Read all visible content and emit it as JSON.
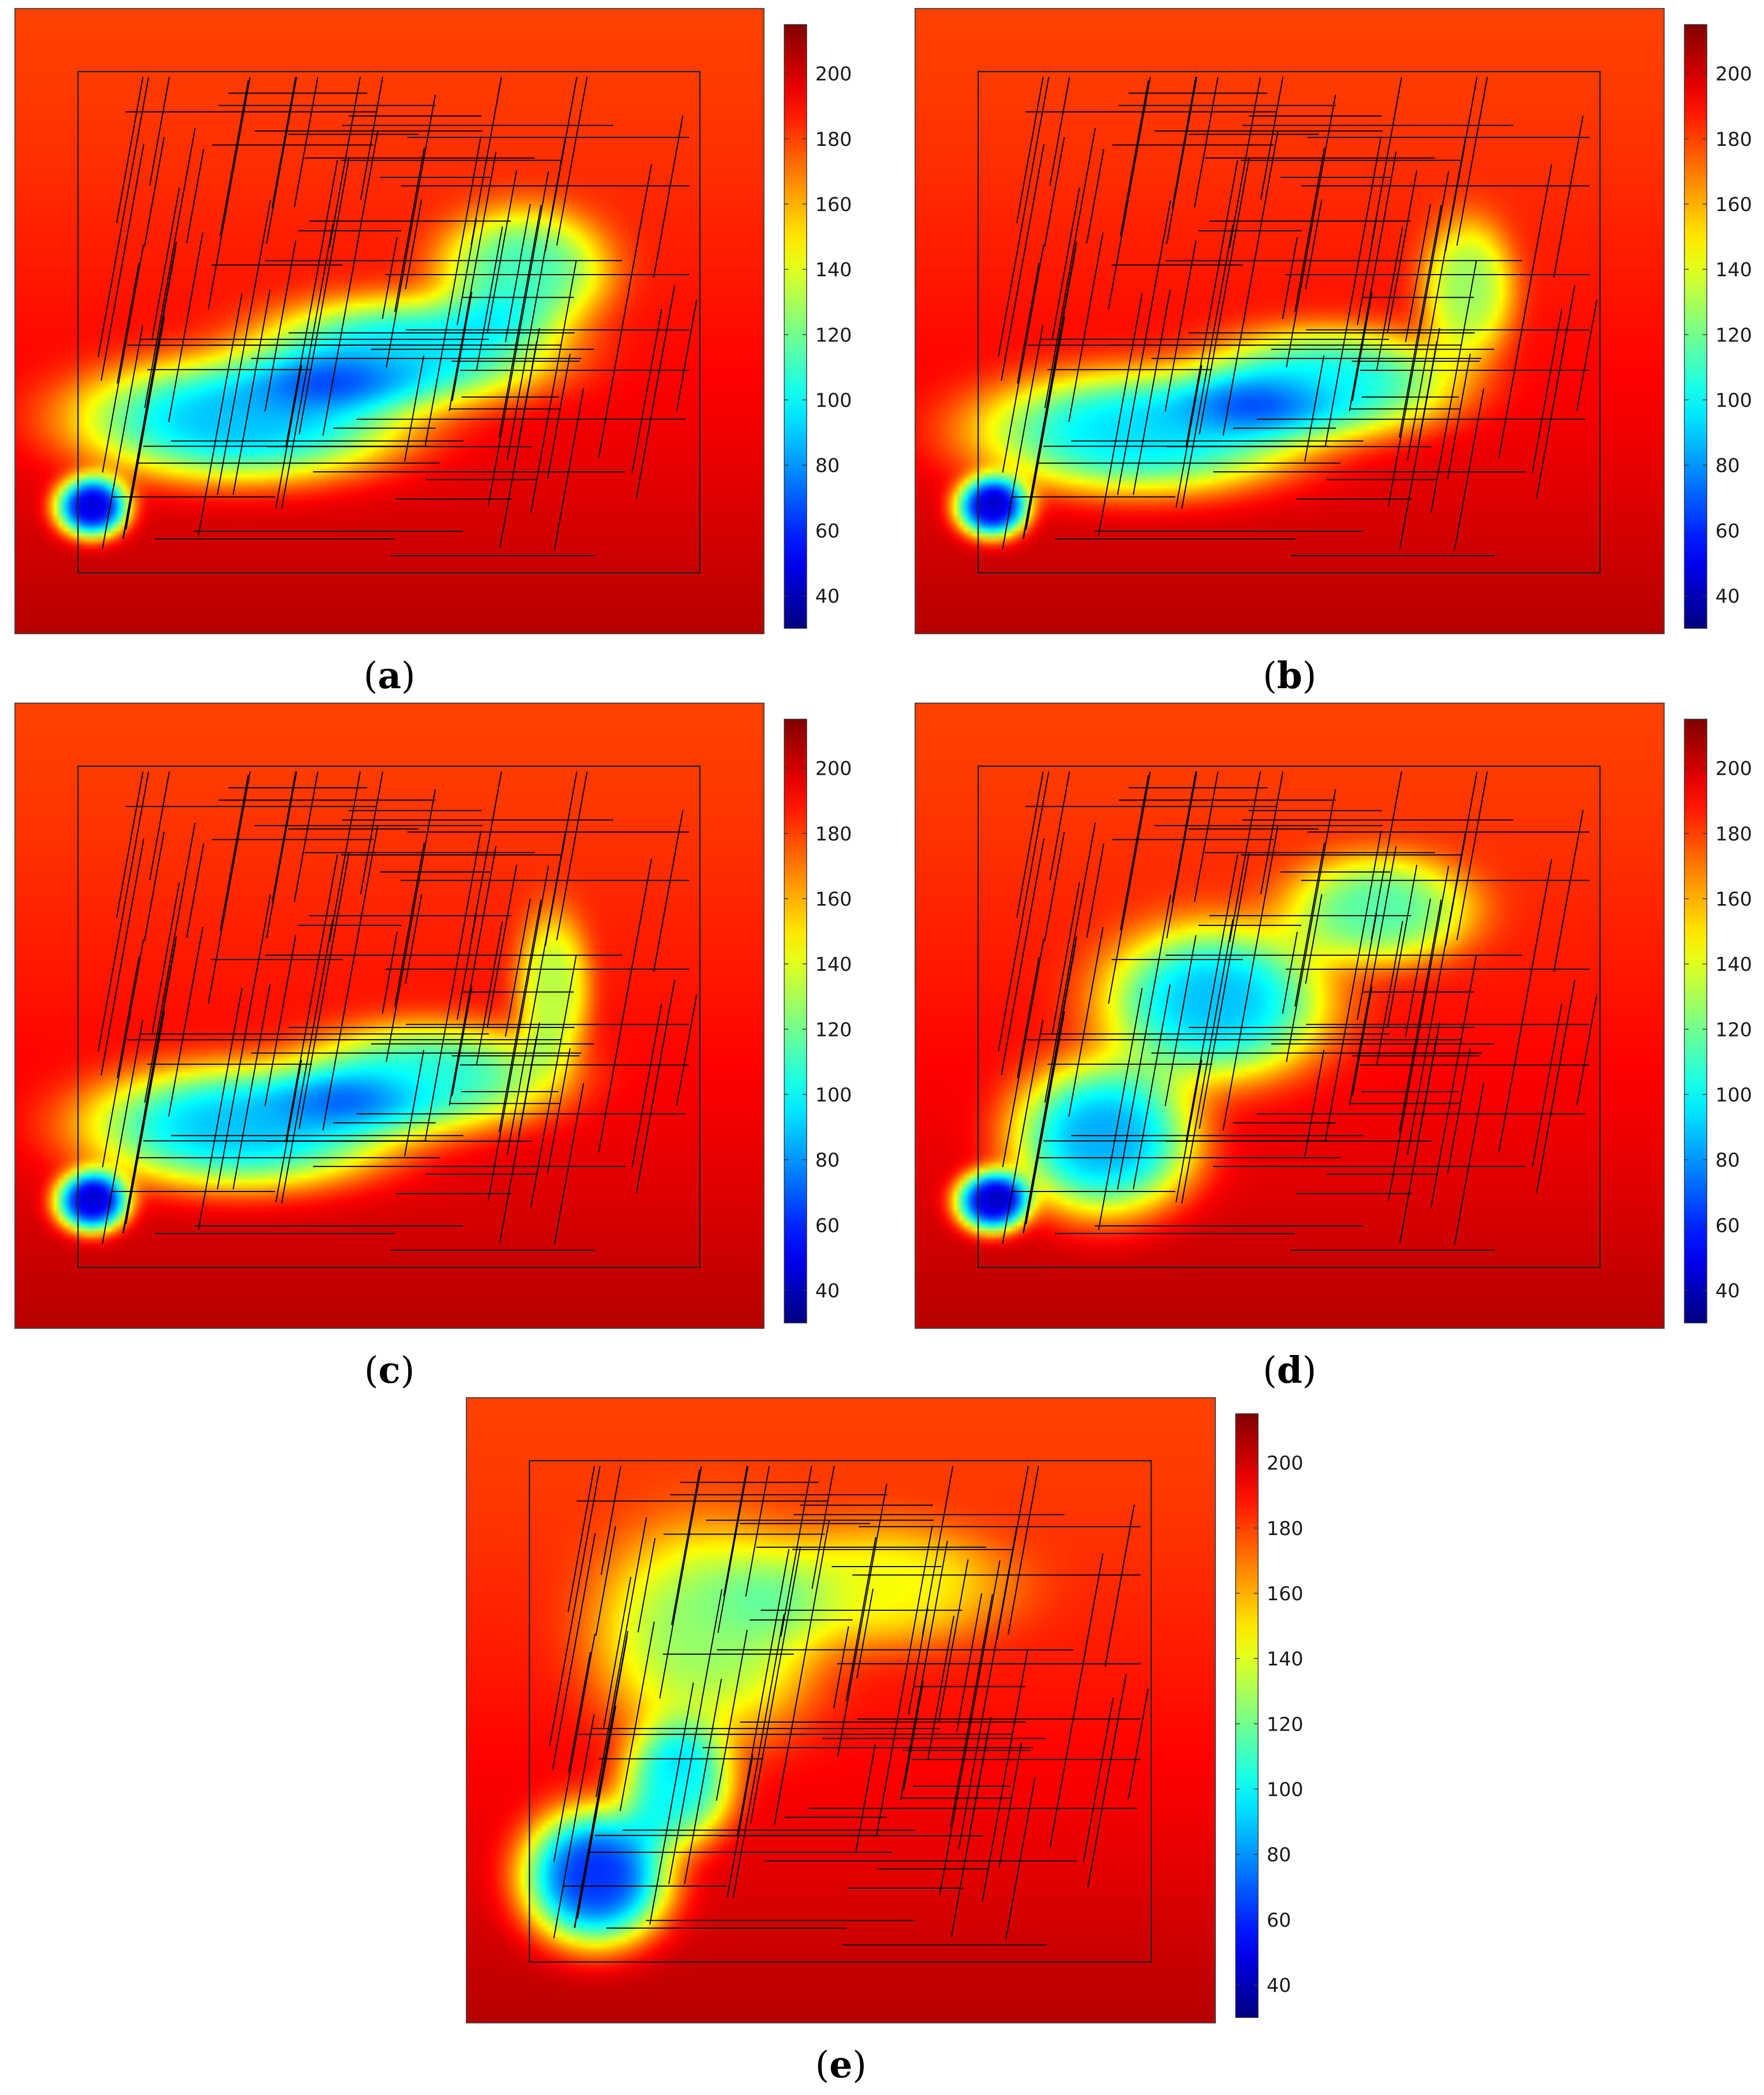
{
  "colorbar": {
    "min": 30,
    "max": 215,
    "ticks": [
      40,
      60,
      80,
      100,
      120,
      140,
      160,
      180,
      200
    ],
    "tick_labels": [
      "40",
      "60",
      "80",
      "100",
      "120",
      "140",
      "160",
      "180",
      "200"
    ],
    "colormap": "jet"
  },
  "chart_data": [
    {
      "type": "heatmap",
      "label": "a",
      "caption_left": "(",
      "caption_right": ")",
      "field": [
        {
          "cx": 0.1,
          "cy": 0.8,
          "sx": 0.04,
          "sy": 0.04,
          "amp": 150
        },
        {
          "cx": 0.3,
          "cy": 0.66,
          "sx": 0.18,
          "sy": 0.08,
          "amp": 105
        },
        {
          "cx": 0.52,
          "cy": 0.55,
          "sx": 0.16,
          "sy": 0.07,
          "amp": 95
        },
        {
          "cx": 0.68,
          "cy": 0.42,
          "sx": 0.09,
          "sy": 0.08,
          "amp": 75
        }
      ]
    },
    {
      "type": "heatmap",
      "label": "b",
      "caption_left": "(",
      "caption_right": ")",
      "field": [
        {
          "cx": 0.1,
          "cy": 0.8,
          "sx": 0.04,
          "sy": 0.04,
          "amp": 150
        },
        {
          "cx": 0.3,
          "cy": 0.68,
          "sx": 0.18,
          "sy": 0.08,
          "amp": 100
        },
        {
          "cx": 0.55,
          "cy": 0.6,
          "sx": 0.14,
          "sy": 0.07,
          "amp": 90
        },
        {
          "cx": 0.74,
          "cy": 0.45,
          "sx": 0.05,
          "sy": 0.09,
          "amp": 60
        }
      ]
    },
    {
      "type": "heatmap",
      "label": "c",
      "caption_left": "(",
      "caption_right": ")",
      "field": [
        {
          "cx": 0.1,
          "cy": 0.8,
          "sx": 0.04,
          "sy": 0.04,
          "amp": 150
        },
        {
          "cx": 0.3,
          "cy": 0.68,
          "sx": 0.17,
          "sy": 0.08,
          "amp": 105
        },
        {
          "cx": 0.55,
          "cy": 0.6,
          "sx": 0.14,
          "sy": 0.07,
          "amp": 85
        },
        {
          "cx": 0.72,
          "cy": 0.46,
          "sx": 0.04,
          "sy": 0.1,
          "amp": 55
        }
      ]
    },
    {
      "type": "heatmap",
      "label": "d",
      "caption_left": "(",
      "caption_right": ")",
      "field": [
        {
          "cx": 0.1,
          "cy": 0.8,
          "sx": 0.04,
          "sy": 0.04,
          "amp": 150
        },
        {
          "cx": 0.25,
          "cy": 0.7,
          "sx": 0.1,
          "sy": 0.1,
          "amp": 110
        },
        {
          "cx": 0.4,
          "cy": 0.48,
          "sx": 0.12,
          "sy": 0.1,
          "amp": 100
        },
        {
          "cx": 0.62,
          "cy": 0.33,
          "sx": 0.1,
          "sy": 0.07,
          "amp": 70
        }
      ]
    },
    {
      "type": "heatmap",
      "label": "e",
      "caption_left": "(",
      "caption_right": ")",
      "field": [
        {
          "cx": 0.17,
          "cy": 0.77,
          "sx": 0.08,
          "sy": 0.09,
          "amp": 135
        },
        {
          "cx": 0.28,
          "cy": 0.62,
          "sx": 0.06,
          "sy": 0.08,
          "amp": 90
        },
        {
          "cx": 0.32,
          "cy": 0.38,
          "sx": 0.12,
          "sy": 0.14,
          "amp": 60
        },
        {
          "cx": 0.55,
          "cy": 0.3,
          "sx": 0.14,
          "sy": 0.08,
          "amp": 40
        }
      ]
    }
  ]
}
